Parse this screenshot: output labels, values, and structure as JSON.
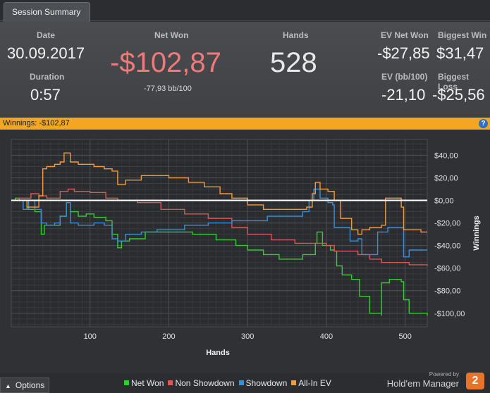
{
  "tab": {
    "label": "Session Summary"
  },
  "summary": {
    "date_label": "Date",
    "date_value": "30.09.2017",
    "duration_label": "Duration",
    "duration_value": "0:57",
    "net_won_label": "Net Won",
    "net_won_value": "-$102,87",
    "bb_per_100": "-77,93 bb/100",
    "hands_label": "Hands",
    "hands_value": "528",
    "ev_net_won_label": "EV Net Won",
    "ev_net_won_value": "-$27,85",
    "biggest_win_label": "Biggest Win",
    "biggest_win_value": "$31,47",
    "ev_bb_label": "EV (bb/100)",
    "ev_bb_value": "-21,10",
    "biggest_loss_label": "Biggest Loss",
    "biggest_loss_value": "-$25,56"
  },
  "winnings_bar": {
    "text": "Winnings: -$102,87",
    "help_icon": "?"
  },
  "colors": {
    "net_won_value": "#f07a7a",
    "accent_bar": "#f4a623",
    "net_won": "#33cc33",
    "non_showdown": "#e05555",
    "showdown": "#3a8fd8",
    "all_in_ev": "#f39a3b",
    "zero_line": "#ffffff"
  },
  "chart_data": {
    "type": "line",
    "xlabel": "Hands",
    "ylabel": "Winnings",
    "xlim": [
      0,
      528
    ],
    "ylim": [
      -112,
      54
    ],
    "x_ticks": [
      100,
      200,
      300,
      400,
      500
    ],
    "y_ticks": [
      {
        "v": 40,
        "label": "$40,00"
      },
      {
        "v": 20,
        "label": "$20,00"
      },
      {
        "v": 0,
        "label": "$0,00"
      },
      {
        "v": -20,
        "label": "-$20,00"
      },
      {
        "v": -40,
        "label": "-$40,00"
      },
      {
        "v": -60,
        "label": "-$60,00"
      },
      {
        "v": -80,
        "label": "-$80,00"
      },
      {
        "v": -100,
        "label": "-$100,00"
      }
    ],
    "series": [
      {
        "name": "Net Won",
        "color": "#33cc33",
        "points": [
          [
            0,
            0
          ],
          [
            5,
            2
          ],
          [
            10,
            0
          ],
          [
            20,
            -8
          ],
          [
            30,
            -10
          ],
          [
            38,
            -30
          ],
          [
            42,
            -22
          ],
          [
            55,
            -22
          ],
          [
            62,
            -14
          ],
          [
            70,
            -2
          ],
          [
            75,
            -10
          ],
          [
            85,
            -14
          ],
          [
            95,
            -12
          ],
          [
            105,
            -15
          ],
          [
            120,
            -18
          ],
          [
            128,
            -30
          ],
          [
            135,
            -42
          ],
          [
            140,
            -36
          ],
          [
            150,
            -34
          ],
          [
            170,
            -28
          ],
          [
            200,
            -28
          ],
          [
            230,
            -30
          ],
          [
            260,
            -35
          ],
          [
            285,
            -40
          ],
          [
            300,
            -44
          ],
          [
            320,
            -48
          ],
          [
            340,
            -52
          ],
          [
            360,
            -52
          ],
          [
            370,
            -48
          ],
          [
            382,
            -48
          ],
          [
            386,
            -38
          ],
          [
            388,
            -28
          ],
          [
            395,
            -40
          ],
          [
            405,
            -44
          ],
          [
            410,
            -45
          ],
          [
            413,
            -58
          ],
          [
            420,
            -66
          ],
          [
            432,
            -70
          ],
          [
            440,
            -70
          ],
          [
            442,
            -85
          ],
          [
            450,
            -85
          ],
          [
            455,
            -100
          ],
          [
            470,
            -102
          ],
          [
            470,
            -73
          ],
          [
            480,
            -70
          ],
          [
            485,
            -70
          ],
          [
            495,
            -72
          ],
          [
            498,
            -88
          ],
          [
            505,
            -100
          ],
          [
            528,
            -102
          ]
        ]
      },
      {
        "name": "Non Showdown",
        "color": "#e05555",
        "points": [
          [
            0,
            0
          ],
          [
            10,
            2
          ],
          [
            25,
            6
          ],
          [
            35,
            4
          ],
          [
            45,
            2
          ],
          [
            55,
            2
          ],
          [
            62,
            8
          ],
          [
            72,
            10
          ],
          [
            80,
            8
          ],
          [
            100,
            7
          ],
          [
            120,
            2
          ],
          [
            135,
            0
          ],
          [
            160,
            -2
          ],
          [
            190,
            -8
          ],
          [
            220,
            -12
          ],
          [
            250,
            -16
          ],
          [
            280,
            -24
          ],
          [
            300,
            -30
          ],
          [
            330,
            -35
          ],
          [
            360,
            -38
          ],
          [
            380,
            -38
          ],
          [
            400,
            -40
          ],
          [
            410,
            -45
          ],
          [
            425,
            -45
          ],
          [
            440,
            -48
          ],
          [
            455,
            -52
          ],
          [
            470,
            -55
          ],
          [
            490,
            -55
          ],
          [
            505,
            -57
          ],
          [
            528,
            -58
          ]
        ]
      },
      {
        "name": "Showdown",
        "color": "#3a8fd8",
        "points": [
          [
            0,
            0
          ],
          [
            6,
            0
          ],
          [
            15,
            -8
          ],
          [
            22,
            0
          ],
          [
            30,
            -8
          ],
          [
            38,
            -20
          ],
          [
            45,
            -22
          ],
          [
            55,
            -20
          ],
          [
            62,
            -14
          ],
          [
            70,
            -2
          ],
          [
            75,
            -20
          ],
          [
            85,
            -22
          ],
          [
            105,
            -20
          ],
          [
            118,
            -22
          ],
          [
            128,
            -34
          ],
          [
            135,
            -36
          ],
          [
            145,
            -30
          ],
          [
            165,
            -28
          ],
          [
            185,
            -26
          ],
          [
            220,
            -22
          ],
          [
            250,
            -20
          ],
          [
            280,
            -18
          ],
          [
            305,
            -18
          ],
          [
            325,
            -14
          ],
          [
            350,
            -14
          ],
          [
            370,
            -10
          ],
          [
            378,
            0
          ],
          [
            384,
            10
          ],
          [
            392,
            2
          ],
          [
            402,
            -2
          ],
          [
            408,
            -4
          ],
          [
            410,
            -24
          ],
          [
            420,
            -24
          ],
          [
            430,
            -36
          ],
          [
            440,
            -34
          ],
          [
            445,
            -48
          ],
          [
            460,
            -48
          ],
          [
            465,
            -28
          ],
          [
            478,
            -24
          ],
          [
            490,
            -24
          ],
          [
            498,
            -50
          ],
          [
            505,
            -44
          ],
          [
            528,
            -44
          ]
        ]
      },
      {
        "name": "All-In EV",
        "color": "#f39a3b",
        "points": [
          [
            0,
            0
          ],
          [
            10,
            0
          ],
          [
            20,
            -6
          ],
          [
            35,
            4
          ],
          [
            40,
            28
          ],
          [
            45,
            30
          ],
          [
            55,
            32
          ],
          [
            62,
            34
          ],
          [
            67,
            42
          ],
          [
            75,
            34
          ],
          [
            85,
            32
          ],
          [
            105,
            30
          ],
          [
            118,
            28
          ],
          [
            128,
            26
          ],
          [
            135,
            14
          ],
          [
            145,
            18
          ],
          [
            165,
            22
          ],
          [
            180,
            22
          ],
          [
            200,
            20
          ],
          [
            225,
            16
          ],
          [
            245,
            12
          ],
          [
            265,
            6
          ],
          [
            280,
            2
          ],
          [
            300,
            -4
          ],
          [
            320,
            -8
          ],
          [
            340,
            -8
          ],
          [
            360,
            -8
          ],
          [
            375,
            -6
          ],
          [
            382,
            6
          ],
          [
            386,
            16
          ],
          [
            392,
            10
          ],
          [
            402,
            8
          ],
          [
            410,
            0
          ],
          [
            418,
            -16
          ],
          [
            425,
            -16
          ],
          [
            432,
            -26
          ],
          [
            440,
            -30
          ],
          [
            445,
            -26
          ],
          [
            455,
            -24
          ],
          [
            470,
            -22
          ],
          [
            475,
            2
          ],
          [
            485,
            2
          ],
          [
            495,
            -6
          ],
          [
            498,
            -26
          ],
          [
            505,
            -26
          ],
          [
            520,
            -28
          ],
          [
            528,
            -28
          ]
        ]
      }
    ]
  },
  "footer": {
    "options_label": "Options",
    "legend": [
      {
        "label": "Net Won",
        "color": "#33cc33"
      },
      {
        "label": "Non Showdown",
        "color": "#e05555"
      },
      {
        "label": "Showdown",
        "color": "#3a8fd8"
      },
      {
        "label": "All-In EV",
        "color": "#f39a3b"
      }
    ],
    "powered_by": "Powered by",
    "brand": "Hold'em Manager",
    "brand_badge": "2"
  }
}
